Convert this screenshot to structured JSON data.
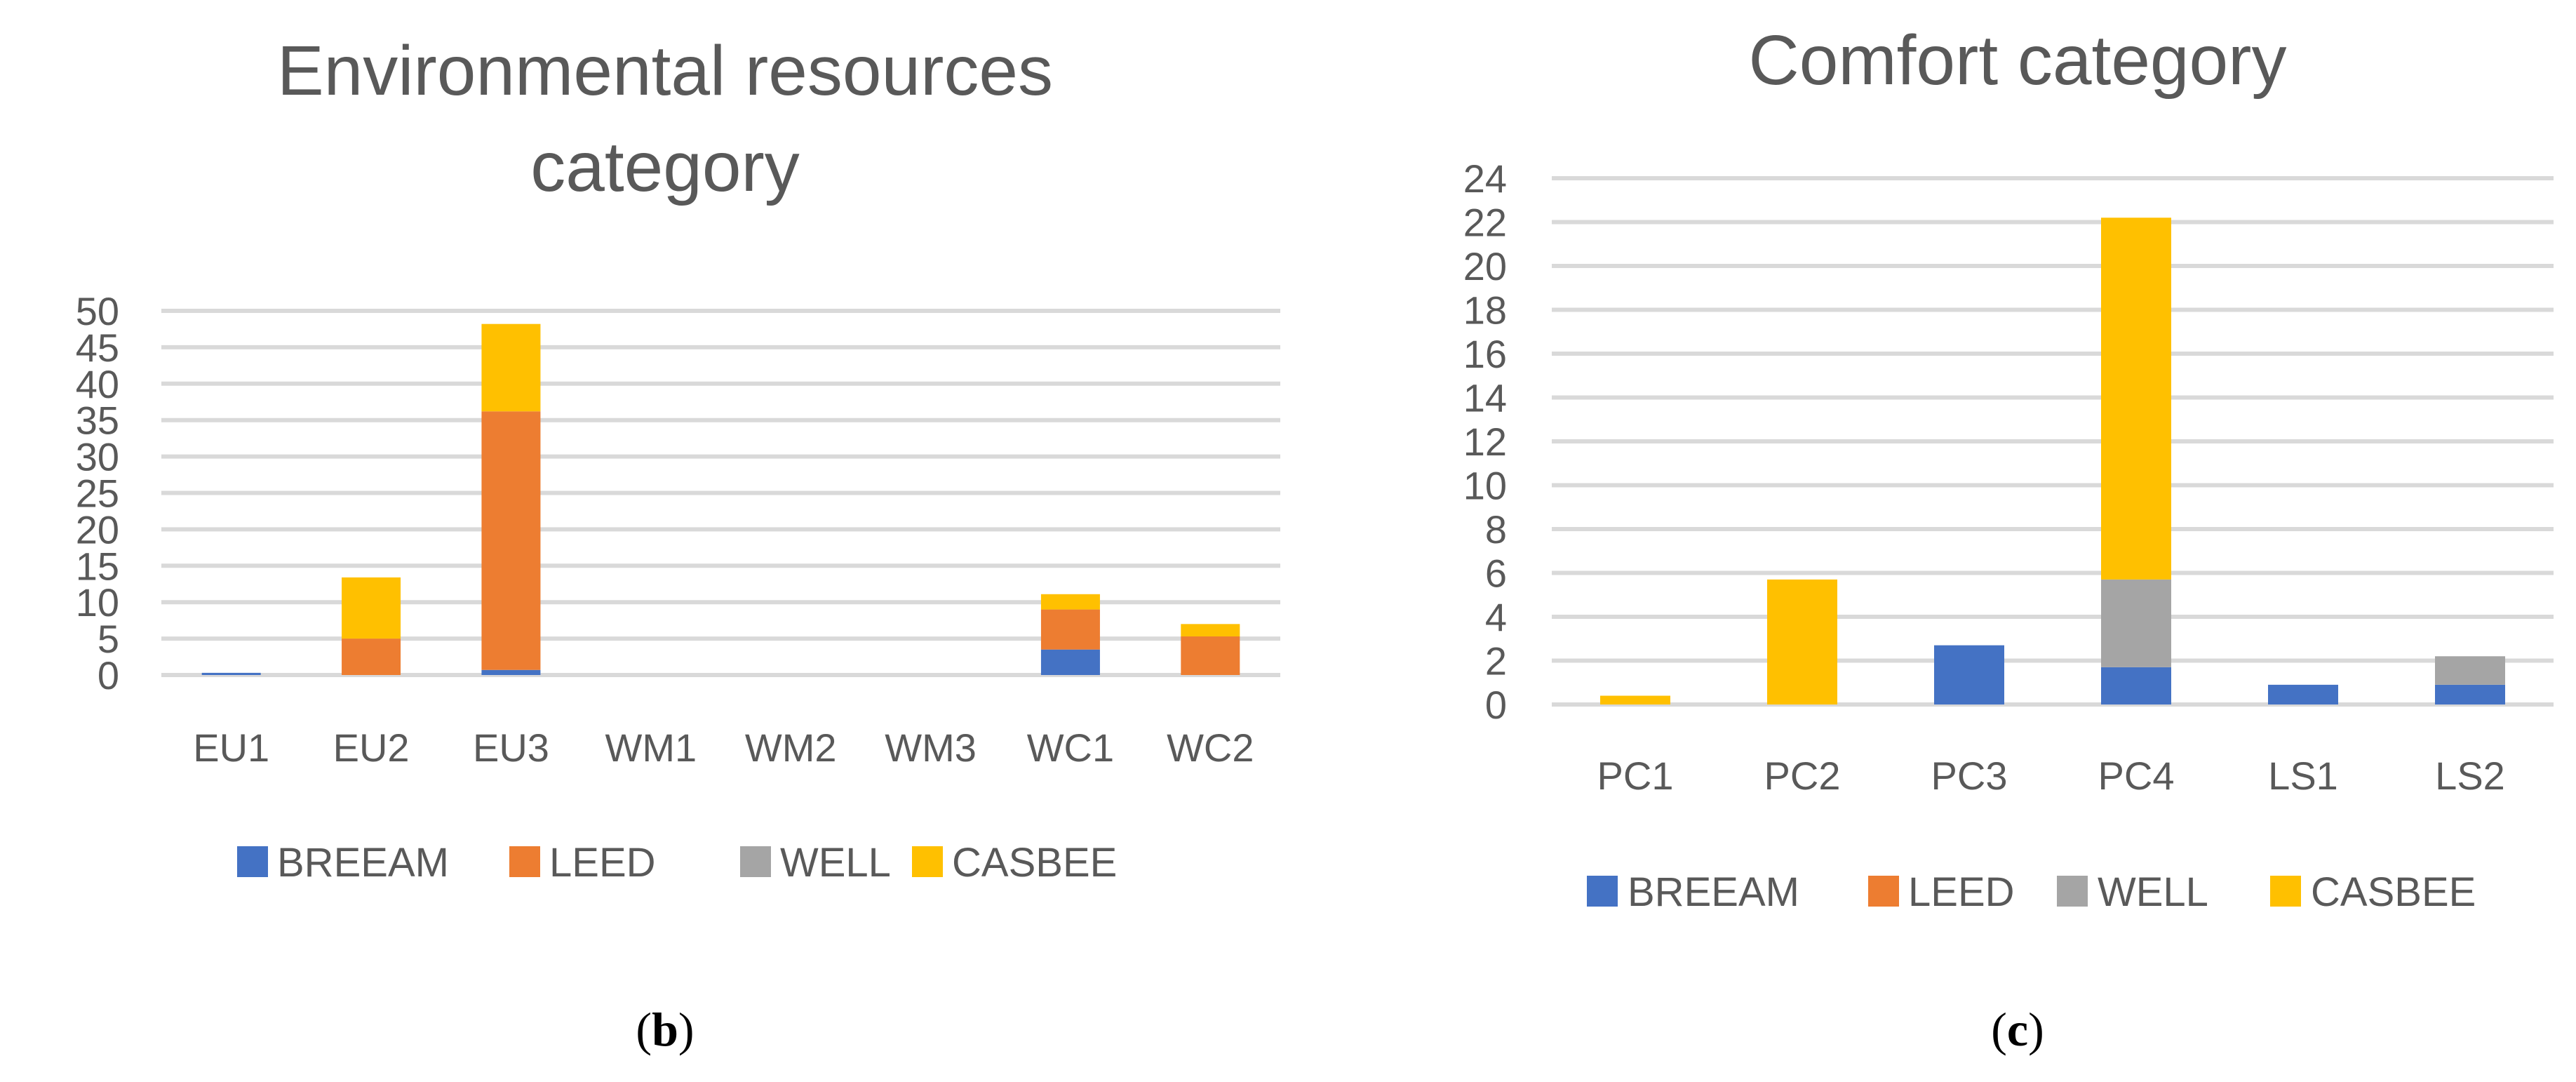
{
  "chart_data": [
    {
      "type": "bar",
      "stacked": true,
      "title": "Environmental resources category",
      "title_lines": [
        "Environmental resources",
        "category"
      ],
      "categories": [
        "EU1",
        "EU2",
        "EU3",
        "WM1",
        "WM2",
        "WM3",
        "WC1",
        "WC2"
      ],
      "series": [
        {
          "name": "BREEAM",
          "color": "#4472c4",
          "values": [
            0.3,
            0,
            0.7,
            0,
            0,
            0,
            3.5,
            0
          ]
        },
        {
          "name": "LEED",
          "color": "#ed7d31",
          "values": [
            0,
            5,
            35.5,
            0,
            0,
            0,
            5.5,
            5.3
          ]
        },
        {
          "name": "WELL",
          "color": "#a5a5a5",
          "values": [
            0,
            0,
            0,
            0,
            0,
            0,
            0,
            0
          ]
        },
        {
          "name": "CASBEE",
          "color": "#ffc000",
          "values": [
            0,
            8.4,
            12,
            0,
            0,
            0,
            2.1,
            1.7
          ]
        }
      ],
      "ylim": [
        0,
        50
      ],
      "yticks": [
        "0",
        "5",
        "10",
        "15",
        "20",
        "25",
        "30",
        "35",
        "40",
        "45",
        "50"
      ],
      "xlabel": "",
      "ylabel": "",
      "legend": "bottom",
      "panel_label": {
        "open": "(",
        "letter": "b",
        "close": ")"
      }
    },
    {
      "type": "bar",
      "stacked": true,
      "title": "Comfort category",
      "title_lines": [
        "Comfort category"
      ],
      "categories": [
        "PC1",
        "PC2",
        "PC3",
        "PC4",
        "LS1",
        "LS2"
      ],
      "series": [
        {
          "name": "BREEAM",
          "color": "#4472c4",
          "values": [
            0,
            0,
            2.7,
            1.7,
            0.9,
            0.9
          ]
        },
        {
          "name": "LEED",
          "color": "#ed7d31",
          "values": [
            0,
            0,
            0,
            0,
            0,
            0
          ]
        },
        {
          "name": "WELL",
          "color": "#a5a5a5",
          "values": [
            0,
            0,
            0,
            4,
            0,
            1.3
          ]
        },
        {
          "name": "CASBEE",
          "color": "#ffc000",
          "values": [
            0.4,
            5.7,
            0,
            16.5,
            0,
            0
          ]
        }
      ],
      "ylim": [
        0,
        24
      ],
      "yticks": [
        "0",
        "2",
        "4",
        "6",
        "8",
        "10",
        "12",
        "14",
        "16",
        "18",
        "20",
        "22",
        "24"
      ],
      "xlabel": "",
      "ylabel": "",
      "legend": "bottom",
      "panel_label": {
        "open": "(",
        "letter": "c",
        "close": ")"
      }
    }
  ]
}
